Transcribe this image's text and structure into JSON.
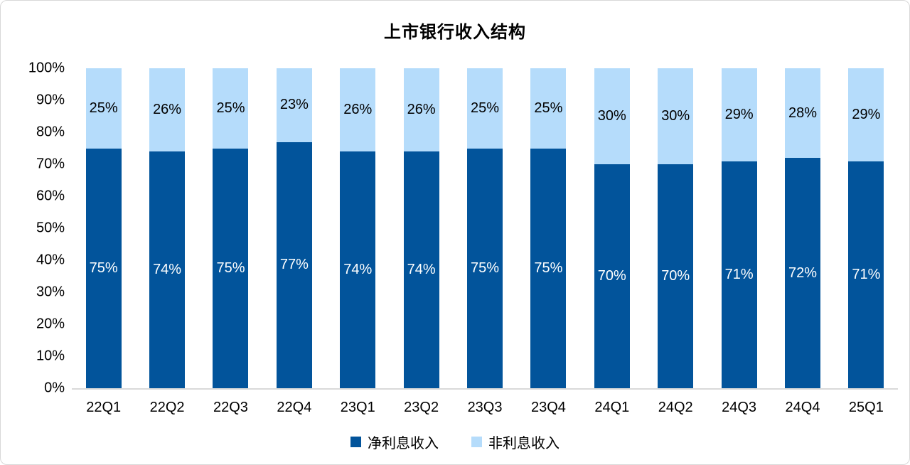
{
  "chart_data": {
    "type": "bar",
    "subtype": "stacked-percent",
    "title": "上市银行收入结构",
    "categories": [
      "22Q1",
      "22Q2",
      "22Q3",
      "22Q4",
      "23Q1",
      "23Q2",
      "23Q3",
      "23Q4",
      "24Q1",
      "24Q2",
      "24Q3",
      "24Q4",
      "25Q1"
    ],
    "series": [
      {
        "name": "净利息收入",
        "color": "#02549B",
        "label_color": "#ffffff",
        "values": [
          75,
          74,
          75,
          77,
          74,
          74,
          75,
          75,
          70,
          70,
          71,
          72,
          71
        ]
      },
      {
        "name": "非利息收入",
        "color": "#B5DCFB",
        "label_color": "#000000",
        "values": [
          25,
          26,
          25,
          23,
          26,
          26,
          25,
          25,
          30,
          30,
          29,
          28,
          29
        ]
      }
    ],
    "value_suffix": "%",
    "y_ticks": [
      "100%",
      "90%",
      "80%",
      "70%",
      "60%",
      "50%",
      "40%",
      "30%",
      "20%",
      "10%",
      "0%"
    ],
    "ylim": [
      0,
      100
    ],
    "xlabel": "",
    "ylabel": "",
    "grid": false,
    "legend_position": "bottom",
    "axis_line_color": "#d9d9d9",
    "background_color": "#ffffff"
  }
}
